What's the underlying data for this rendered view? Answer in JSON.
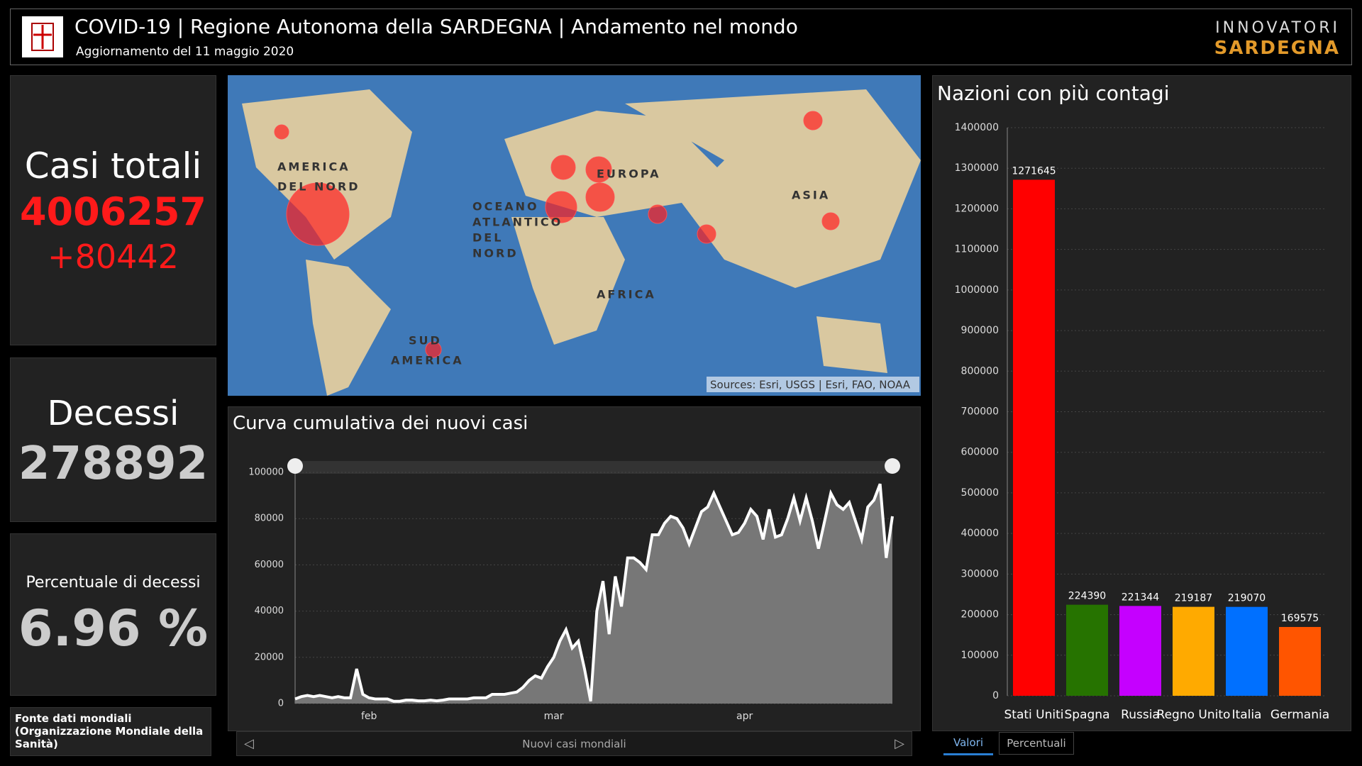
{
  "header": {
    "title": "COVID-19 | Regione Autonoma della SARDEGNA | Andamento nel mondo",
    "subtitle": "Aggiornamento del 11 maggio 2020",
    "brand_top": "INNOVATORI",
    "brand_bottom": "SARDEGNA"
  },
  "kpis": [
    {
      "label": "Casi totali",
      "value": "4006257",
      "delta": "+80442"
    },
    {
      "label": "Decessi",
      "value": "278892"
    },
    {
      "label": "Percentuale di decessi",
      "value": "6.96 %"
    }
  ],
  "source_note": "Fonte dati mondiali (Organizzazione Mondiale della Sanità)",
  "map": {
    "labels": [
      "AMERICA",
      "DEL NORD",
      "OCEANO",
      "ATLANTICO",
      "DEL",
      "NORD",
      "EUROPA",
      "ASIA",
      "AFRICA",
      "SUD",
      "AMERICA"
    ],
    "attribution": "Sources: Esri, USGS | Esri, FAO, NOAA"
  },
  "line_chart": {
    "type": "area",
    "title": "Curva cumulativa dei nuovi casi",
    "x_label": "Nuovi casi mondiali",
    "categories": [
      null,
      null,
      null,
      null,
      null,
      null,
      null,
      null,
      null,
      null,
      null,
      null,
      "feb",
      null,
      null,
      null,
      null,
      null,
      null,
      null,
      null,
      null,
      null,
      null,
      null,
      null,
      null,
      null,
      null,
      null,
      null,
      null,
      null,
      null,
      null,
      null,
      null,
      null,
      null,
      null,
      null,
      null,
      "mar",
      null,
      null,
      null,
      null,
      null,
      null,
      null,
      null,
      null,
      null,
      null,
      null,
      null,
      null,
      null,
      null,
      null,
      null,
      null,
      null,
      null,
      null,
      null,
      null,
      null,
      null,
      null,
      null,
      null,
      null,
      "apr",
      null,
      null,
      null,
      null,
      null,
      null,
      null,
      null,
      null,
      null,
      null,
      null,
      null,
      null,
      null,
      null,
      null,
      null,
      null,
      null,
      null,
      null,
      null,
      null
    ],
    "values": [
      2000,
      3000,
      3500,
      3000,
      3500,
      3000,
      2500,
      3000,
      2500,
      2500,
      15000,
      4000,
      2500,
      2000,
      2000,
      2000,
      1000,
      1000,
      1500,
      1500,
      1200,
      1200,
      1500,
      1200,
      1500,
      2000,
      2000,
      2000,
      2000,
      2500,
      2500,
      2500,
      4000,
      4000,
      4000,
      4500,
      5000,
      7000,
      10000,
      12000,
      11000,
      16000,
      20000,
      27000,
      32000,
      24000,
      27000,
      15000,
      1000,
      40000,
      53000,
      30000,
      55000,
      42000,
      63000,
      63000,
      61000,
      58000,
      73000,
      73000,
      78000,
      81000,
      80000,
      76000,
      69000,
      76000,
      83000,
      85000,
      91000,
      85000,
      79000,
      73000,
      74000,
      78000,
      84000,
      81000,
      71000,
      84000,
      72000,
      73000,
      80000,
      89000,
      79000,
      89000,
      79000,
      67000,
      79000,
      91000,
      86000,
      84000,
      87000,
      79000,
      71000,
      85000,
      88000,
      95000,
      63000,
      81000
    ],
    "color": "#ffffff",
    "ylim": [
      0,
      100000
    ],
    "yticks": [
      0,
      20000,
      40000,
      60000,
      80000,
      100000
    ],
    "grid": true
  },
  "bar_chart": {
    "type": "bar",
    "title": "Nazioni con più contagi",
    "categories": [
      "Stati Uniti",
      "Spagna",
      "Russia",
      "Regno Unito",
      "Italia",
      "Germania"
    ],
    "values": [
      1271645,
      224390,
      221344,
      219187,
      219070,
      169575
    ],
    "colors": [
      "#ff0000",
      "#267300",
      "#c500ff",
      "#ffaa00",
      "#0070ff",
      "#ff5500"
    ],
    "ylim": [
      0,
      1400000
    ],
    "yticks": [
      0,
      100000,
      200000,
      300000,
      400000,
      500000,
      600000,
      700000,
      800000,
      900000,
      1000000,
      1100000,
      1200000,
      1300000,
      1400000
    ],
    "grid": true,
    "tabs": [
      "Valori",
      "Percentuali"
    ]
  }
}
